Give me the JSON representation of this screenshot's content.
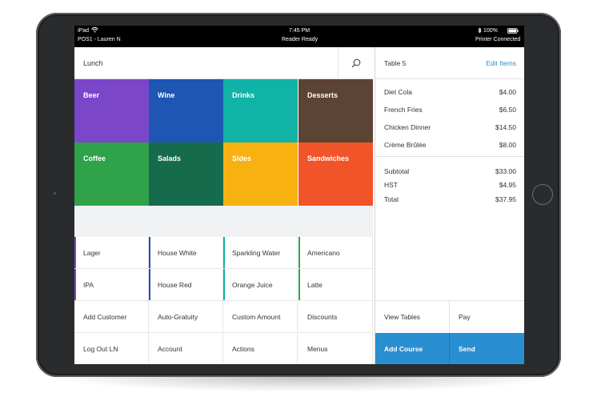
{
  "status_bar": {
    "device": "iPad",
    "time": "7:45 PM",
    "battery": "100%",
    "pos_label": "POS1 - Lauren N",
    "reader_status": "Reader Ready",
    "printer_status": "Printer Connected"
  },
  "search": {
    "value": "Lunch"
  },
  "categories": [
    {
      "label": "Beer",
      "color": "#7b46c9"
    },
    {
      "label": "Wine",
      "color": "#1f55b3"
    },
    {
      "label": "Drinks",
      "color": "#10b3a5"
    },
    {
      "label": "Desserts",
      "color": "#5c4434"
    },
    {
      "label": "Coffee",
      "color": "#2fa24a"
    },
    {
      "label": "Salads",
      "color": "#176b4d"
    },
    {
      "label": "Sides",
      "color": "#f7b212"
    },
    {
      "label": "Sandwiches",
      "color": "#f2542a"
    }
  ],
  "items": [
    {
      "label": "Lager",
      "accent": "#7b46c9"
    },
    {
      "label": "House White",
      "accent": "#1f55b3"
    },
    {
      "label": "Sparkling Water",
      "accent": "#10b3a5"
    },
    {
      "label": "Americano",
      "accent": "#2fa24a"
    },
    {
      "label": "IPA",
      "accent": "#7b46c9"
    },
    {
      "label": "House Red",
      "accent": "#1f55b3"
    },
    {
      "label": "Orange Juice",
      "accent": "#10b3a5"
    },
    {
      "label": "Latte",
      "accent": "#2fa24a"
    }
  ],
  "actions": [
    {
      "label": "Add Customer"
    },
    {
      "label": "Auto-Gratuity"
    },
    {
      "label": "Custom Amount"
    },
    {
      "label": "Discounts"
    },
    {
      "label": "Log Out LN"
    },
    {
      "label": "Account"
    },
    {
      "label": "Actions"
    },
    {
      "label": "Menus"
    }
  ],
  "ticket": {
    "table": "Table 5",
    "edit_label": "Edit Items",
    "lines": [
      {
        "name": "Diet Cola",
        "price": "$4.00"
      },
      {
        "name": "French Fries",
        "price": "$6.50"
      },
      {
        "name": "Chicken Dinner",
        "price": "$14.50"
      },
      {
        "name": "Crème Brûlée",
        "price": "$8.00"
      }
    ],
    "subtotal_label": "Subtotal",
    "subtotal": "$33.00",
    "tax_label": "HST",
    "tax": "$4.95",
    "total_label": "Total",
    "total": "$37.95"
  },
  "buttons": {
    "view_tables": "View Tables",
    "pay": "Pay",
    "add_course": "Add Course",
    "send": "Send"
  },
  "colors": {
    "accent_blue": "#2a8fd1",
    "link_blue": "#2a8fd1"
  }
}
